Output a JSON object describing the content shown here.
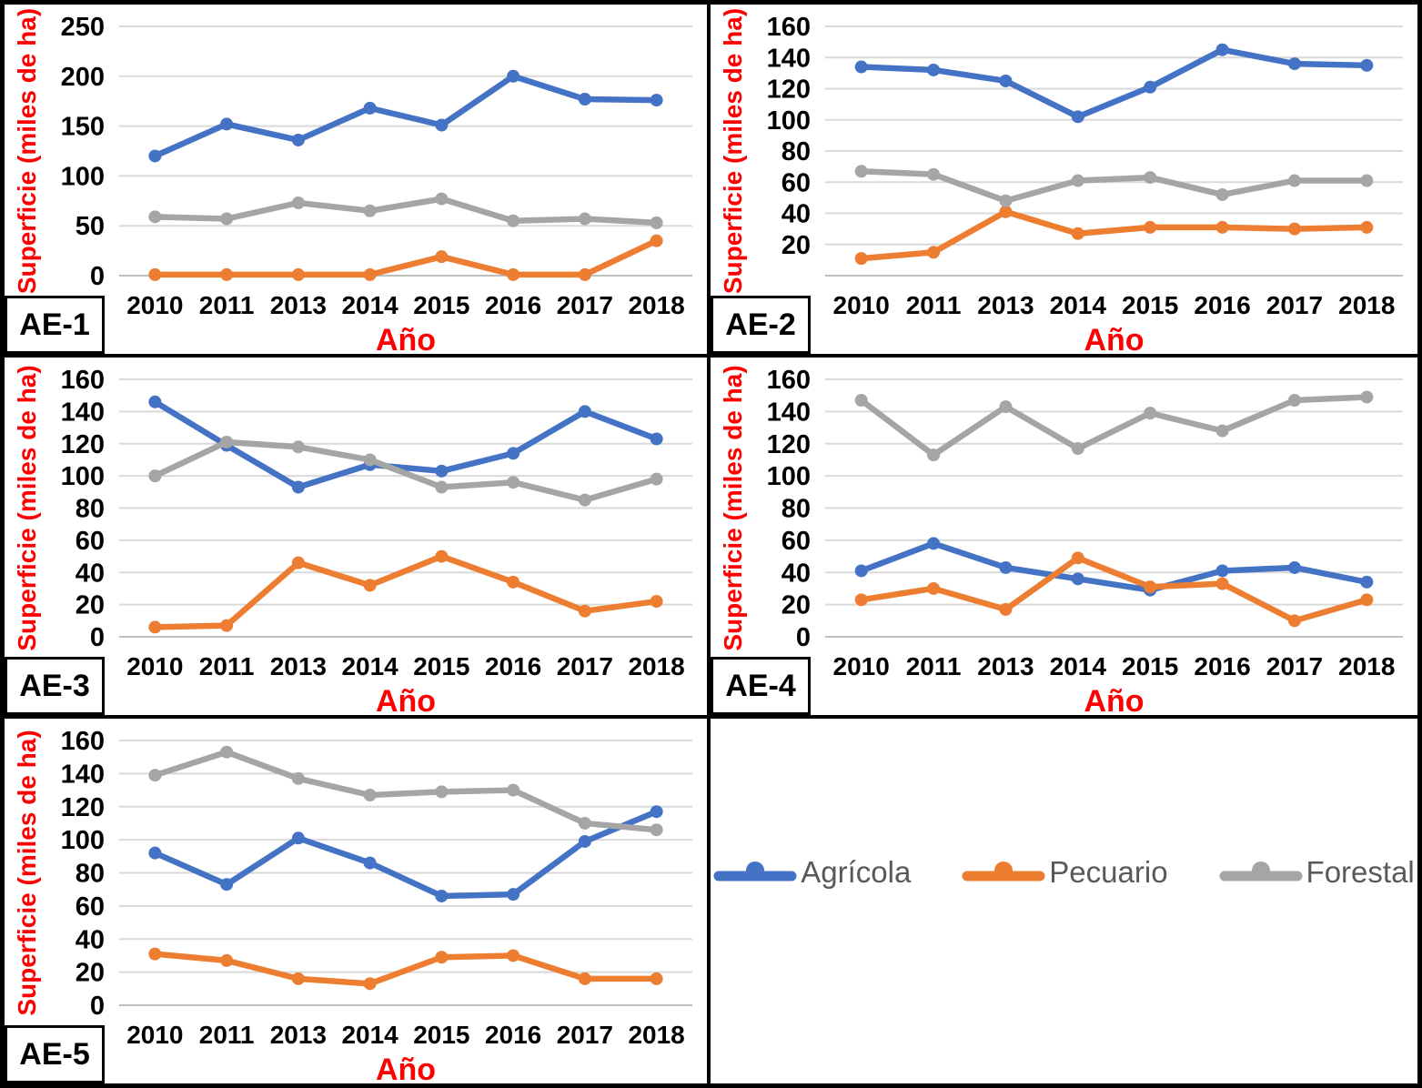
{
  "palette": {
    "agricola": "#4472C4",
    "pecuario": "#ED7D31",
    "forestal": "#A5A5A5",
    "axis_text": "#FF0000",
    "tick_text": "#000000",
    "grid": "#D9D9D9",
    "axis_line": "#BFBFBF",
    "legend_text": "#595959",
    "border": "#000000",
    "background": "#FFFFFF"
  },
  "legend": {
    "items": [
      {
        "label": "Agrícola",
        "series": "agricola"
      },
      {
        "label": "Pecuario",
        "series": "pecuario"
      },
      {
        "label": "Forestal",
        "series": "forestal"
      }
    ]
  },
  "chart_data": [
    {
      "panel_label": "AE-1",
      "type": "line",
      "y_title": "Superficie (miles de ha)",
      "x_title": "Año",
      "categories": [
        "2010",
        "2011",
        "2013",
        "2014",
        "2015",
        "2016",
        "2017",
        "2018"
      ],
      "ylim": [
        0,
        250
      ],
      "grid": true,
      "yticks": [
        {
          "value": 0,
          "label": "0"
        },
        {
          "value": 50,
          "label": "50"
        },
        {
          "value": 100,
          "label": "100"
        },
        {
          "value": 150,
          "label": "150"
        },
        {
          "value": 200,
          "label": "200"
        },
        {
          "value": 250,
          "label": "250"
        }
      ],
      "series": [
        {
          "name": "Agrícola",
          "color_key": "agricola",
          "values": [
            120,
            152,
            136,
            168,
            151,
            200,
            177,
            176
          ]
        },
        {
          "name": "Pecuario",
          "color_key": "pecuario",
          "values": [
            1,
            1,
            1,
            1,
            19,
            1,
            1,
            35
          ]
        },
        {
          "name": "Forestal",
          "color_key": "forestal",
          "values": [
            59,
            57,
            73,
            65,
            77,
            55,
            57,
            53
          ]
        }
      ]
    },
    {
      "panel_label": "AE-2",
      "type": "line",
      "y_title": "Superficie (miles de ha)",
      "x_title": "Año",
      "categories": [
        "2010",
        "2011",
        "2013",
        "2014",
        "2015",
        "2016",
        "2017",
        "2018"
      ],
      "ylim": [
        0,
        160
      ],
      "grid": true,
      "yticks": [
        {
          "value": 0,
          "label": ""
        },
        {
          "value": 20,
          "label": "20"
        },
        {
          "value": 40,
          "label": "40"
        },
        {
          "value": 60,
          "label": "60"
        },
        {
          "value": 80,
          "label": "80"
        },
        {
          "value": 100,
          "label": "100"
        },
        {
          "value": 120,
          "label": "120"
        },
        {
          "value": 140,
          "label": "140"
        },
        {
          "value": 160,
          "label": "160"
        }
      ],
      "series": [
        {
          "name": "Agrícola",
          "color_key": "agricola",
          "values": [
            134,
            132,
            125,
            102,
            121,
            145,
            136,
            135
          ]
        },
        {
          "name": "Pecuario",
          "color_key": "pecuario",
          "values": [
            11,
            15,
            41,
            27,
            31,
            31,
            30,
            31
          ]
        },
        {
          "name": "Forestal",
          "color_key": "forestal",
          "values": [
            67,
            65,
            48,
            61,
            63,
            52,
            61,
            61
          ]
        }
      ]
    },
    {
      "panel_label": "AE-3",
      "type": "line",
      "y_title": "Superficie (miles de ha)",
      "x_title": "Año",
      "categories": [
        "2010",
        "2011",
        "2013",
        "2014",
        "2015",
        "2016",
        "2017",
        "2018"
      ],
      "ylim": [
        0,
        160
      ],
      "grid": true,
      "yticks": [
        {
          "value": 0,
          "label": "0"
        },
        {
          "value": 20,
          "label": "20"
        },
        {
          "value": 40,
          "label": "40"
        },
        {
          "value": 60,
          "label": "60"
        },
        {
          "value": 80,
          "label": "80"
        },
        {
          "value": 100,
          "label": "100"
        },
        {
          "value": 120,
          "label": "120"
        },
        {
          "value": 140,
          "label": "140"
        },
        {
          "value": 160,
          "label": "160"
        }
      ],
      "series": [
        {
          "name": "Agrícola",
          "color_key": "agricola",
          "values": [
            146,
            119,
            93,
            107,
            103,
            114,
            140,
            123
          ]
        },
        {
          "name": "Pecuario",
          "color_key": "pecuario",
          "values": [
            6,
            7,
            46,
            32,
            50,
            34,
            16,
            22
          ]
        },
        {
          "name": "Forestal",
          "color_key": "forestal",
          "values": [
            100,
            121,
            118,
            110,
            93,
            96,
            85,
            98
          ]
        }
      ]
    },
    {
      "panel_label": "AE-4",
      "type": "line",
      "y_title": "Superficie (miles de ha)",
      "x_title": "Año",
      "categories": [
        "2010",
        "2011",
        "2013",
        "2014",
        "2015",
        "2016",
        "2017",
        "2018"
      ],
      "ylim": [
        0,
        160
      ],
      "grid": true,
      "yticks": [
        {
          "value": 0,
          "label": "0"
        },
        {
          "value": 20,
          "label": "20"
        },
        {
          "value": 40,
          "label": "40"
        },
        {
          "value": 60,
          "label": "60"
        },
        {
          "value": 80,
          "label": "80"
        },
        {
          "value": 100,
          "label": "100"
        },
        {
          "value": 120,
          "label": "120"
        },
        {
          "value": 140,
          "label": "140"
        },
        {
          "value": 160,
          "label": "160"
        }
      ],
      "series": [
        {
          "name": "Agrícola",
          "color_key": "agricola",
          "values": [
            41,
            58,
            43,
            36,
            29,
            41,
            43,
            34
          ]
        },
        {
          "name": "Pecuario",
          "color_key": "pecuario",
          "values": [
            23,
            30,
            17,
            49,
            31,
            33,
            10,
            23
          ]
        },
        {
          "name": "Forestal",
          "color_key": "forestal",
          "values": [
            147,
            113,
            143,
            117,
            139,
            128,
            147,
            149
          ]
        }
      ]
    },
    {
      "panel_label": "AE-5",
      "type": "line",
      "y_title": "Superficie (miles de ha)",
      "x_title": "Año",
      "categories": [
        "2010",
        "2011",
        "2013",
        "2014",
        "2015",
        "2016",
        "2017",
        "2018"
      ],
      "ylim": [
        0,
        160
      ],
      "grid": true,
      "yticks": [
        {
          "value": 0,
          "label": "0"
        },
        {
          "value": 20,
          "label": "20"
        },
        {
          "value": 40,
          "label": "40"
        },
        {
          "value": 60,
          "label": "60"
        },
        {
          "value": 80,
          "label": "80"
        },
        {
          "value": 100,
          "label": "100"
        },
        {
          "value": 120,
          "label": "120"
        },
        {
          "value": 140,
          "label": "140"
        },
        {
          "value": 160,
          "label": "160"
        }
      ],
      "series": [
        {
          "name": "Agrícola",
          "color_key": "agricola",
          "values": [
            92,
            73,
            101,
            86,
            66,
            67,
            99,
            117
          ]
        },
        {
          "name": "Pecuario",
          "color_key": "pecuario",
          "values": [
            31,
            27,
            16,
            13,
            29,
            30,
            16,
            16
          ]
        },
        {
          "name": "Forestal",
          "color_key": "forestal",
          "values": [
            139,
            153,
            137,
            127,
            129,
            130,
            110,
            106
          ]
        }
      ]
    }
  ]
}
